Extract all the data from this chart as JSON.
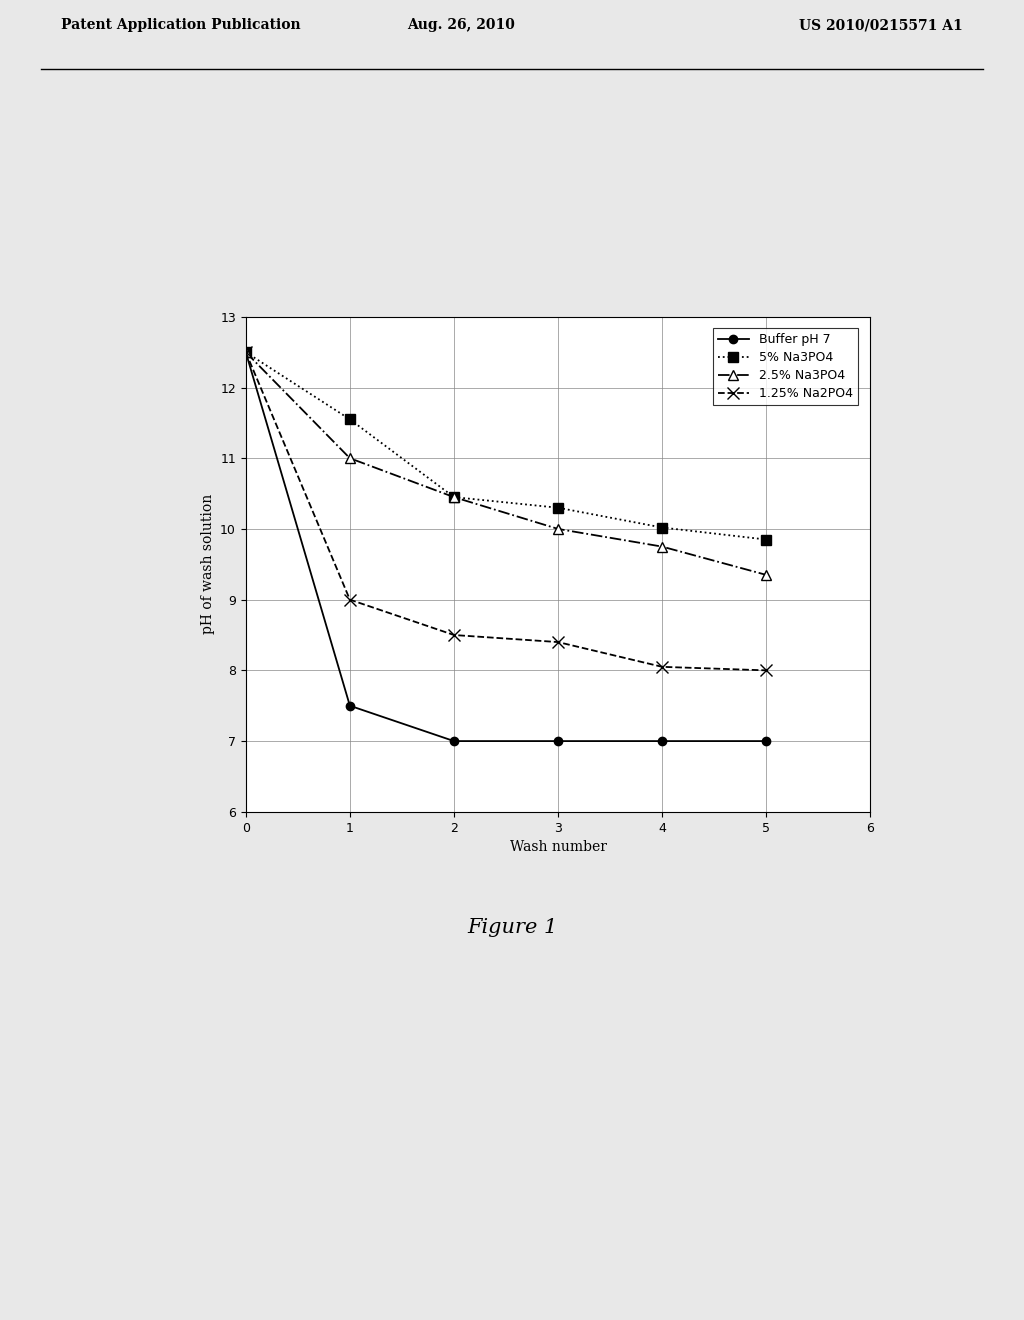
{
  "series": {
    "buffer_ph7": {
      "label": "Buffer pH 7",
      "x": [
        0,
        1,
        2,
        3,
        4,
        5
      ],
      "y": [
        12.5,
        7.5,
        7.0,
        7.0,
        7.0,
        7.0
      ],
      "color": "#000000",
      "linestyle": "-",
      "marker": "o",
      "markerfacecolor": "#000000",
      "markersize": 6,
      "linewidth": 1.3
    },
    "na3po4_5": {
      "label": "5% Na3PO4",
      "x": [
        0,
        1,
        2,
        3,
        4,
        5
      ],
      "y": [
        12.5,
        11.55,
        10.45,
        10.3,
        10.02,
        9.85
      ],
      "color": "#000000",
      "linestyle": ":",
      "marker": "s",
      "markerfacecolor": "#000000",
      "markersize": 7,
      "linewidth": 1.3
    },
    "na3po4_2p5": {
      "label": "2.5% Na3PO4",
      "x": [
        0,
        1,
        2,
        3,
        4,
        5
      ],
      "y": [
        12.5,
        11.0,
        10.45,
        10.0,
        9.75,
        9.35
      ],
      "color": "#000000",
      "linestyle": "-.",
      "marker": "^",
      "markerfacecolor": "white",
      "markersize": 7,
      "linewidth": 1.3
    },
    "na2po4_1p25": {
      "label": "1.25% Na2PO4",
      "x": [
        0,
        1,
        2,
        3,
        4,
        5
      ],
      "y": [
        12.5,
        9.0,
        8.5,
        8.4,
        8.05,
        8.0
      ],
      "color": "#000000",
      "linestyle": "--",
      "marker": "x",
      "markerfacecolor": "#000000",
      "markersize": 8,
      "linewidth": 1.3
    }
  },
  "xlabel": "Wash number",
  "ylabel": "pH of wash solution",
  "xlim": [
    0,
    6
  ],
  "ylim": [
    6,
    13
  ],
  "xticks": [
    0,
    1,
    2,
    3,
    4,
    5,
    6
  ],
  "yticks": [
    6,
    7,
    8,
    9,
    10,
    11,
    12,
    13
  ],
  "figure_caption": "Figure 1",
  "header_left": "Patent Application Publication",
  "header_center": "Aug. 26, 2010",
  "header_right": "US 2010/0215571 A1",
  "background_color": "#e8e8e8",
  "plot_bg_color": "#ffffff",
  "legend_label_buffer": "Buffer pH 7",
  "legend_label_5pct": "5% Na3PO4",
  "legend_label_2p5pct": "2.5% Na3PO4",
  "legend_label_1p25pct": "1.25% Na2PO4"
}
